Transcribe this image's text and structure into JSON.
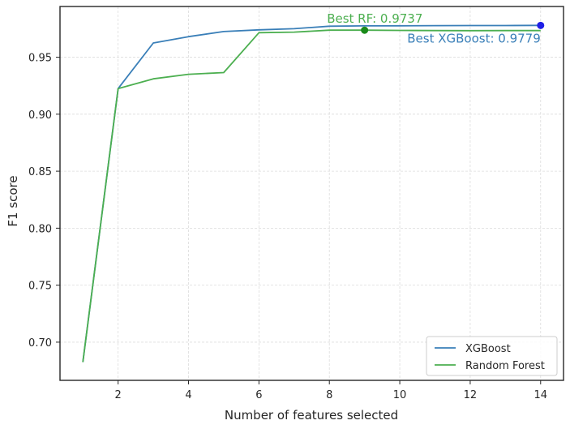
{
  "chart_data": {
    "type": "line",
    "xlabel": "Number of features selected",
    "ylabel": "F1 score",
    "xlim": [
      0.35,
      14.65
    ],
    "ylim": [
      0.6665,
      0.9945
    ],
    "xticks": [
      2,
      4,
      6,
      8,
      10,
      12,
      14
    ],
    "yticks": [
      0.7,
      0.75,
      0.8,
      0.85,
      0.9,
      0.95
    ],
    "x_tick_labels": [
      "2",
      "4",
      "6",
      "8",
      "10",
      "12",
      "14"
    ],
    "y_tick_labels": [
      "0.70",
      "0.75",
      "0.80",
      "0.85",
      "0.90",
      "0.95"
    ],
    "grid": true,
    "legend_position": "lower-right",
    "series": [
      {
        "name": "XGBoost",
        "color": "#3a7fb8",
        "x": [
          1,
          2,
          3,
          4,
          5,
          6,
          7,
          8,
          9,
          10,
          11,
          12,
          13,
          14
        ],
        "y": [
          0.6825,
          0.9225,
          0.9625,
          0.968,
          0.9725,
          0.974,
          0.975,
          0.9772,
          0.9775,
          0.9776,
          0.9777,
          0.9778,
          0.9778,
          0.9779
        ]
      },
      {
        "name": "Random Forest",
        "color": "#4caf50",
        "x": [
          1,
          2,
          3,
          4,
          5,
          6,
          7,
          8,
          9,
          10,
          11,
          12,
          13,
          14
        ],
        "y": [
          0.6825,
          0.9225,
          0.931,
          0.935,
          0.9365,
          0.9715,
          0.972,
          0.9737,
          0.9737,
          0.9735,
          0.9734,
          0.9733,
          0.9734,
          0.9734
        ]
      }
    ],
    "best_points": [
      {
        "series": "XGBoost",
        "x": 14,
        "y": 0.9779,
        "color": "#1f1fe6"
      },
      {
        "series": "Random Forest",
        "x": 9,
        "y": 0.9737,
        "color": "#1a8a1a"
      }
    ],
    "annotations": [
      {
        "text": "Best RF: 0.9737",
        "color": "#4caf50",
        "anchor_x": 8,
        "anchor_y": 0.9737,
        "align": "start",
        "offset": "above"
      },
      {
        "text": "Best XGBoost: 0.9779",
        "color": "#3a7fb8",
        "anchor_x": 14,
        "anchor_y": 0.9779,
        "align": "end",
        "offset": "below"
      }
    ]
  }
}
